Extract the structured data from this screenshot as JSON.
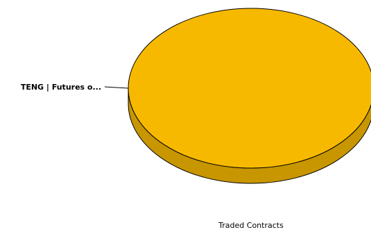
{
  "chart_data": {
    "type": "pie",
    "style": "3d",
    "slices": [
      {
        "label": "TENG | Futures o...",
        "value": 100,
        "color": "#f7b900",
        "side_color": "#c79600"
      }
    ],
    "caption": "Traded Contracts",
    "legend": "none",
    "grid": false
  }
}
